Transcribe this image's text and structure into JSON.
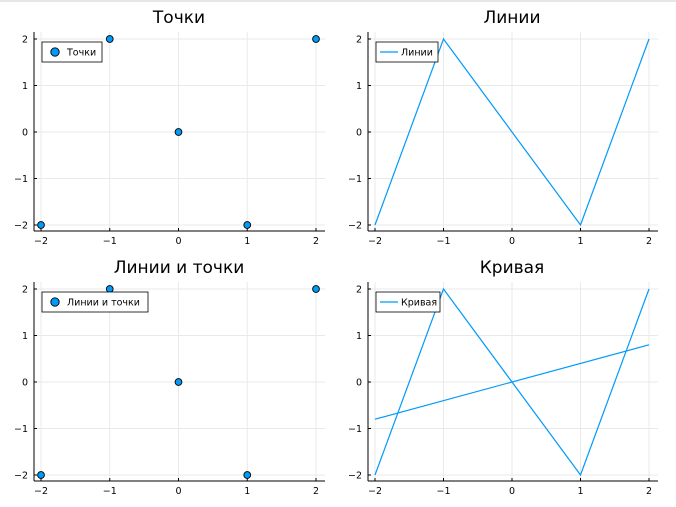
{
  "colors": {
    "series": "#009AFA",
    "marker_stroke": "#000000",
    "grid": "#E9E9E9",
    "axis": "#000000"
  },
  "chart_data": [
    {
      "type": "scatter",
      "title": "Точки",
      "xlabel": "",
      "ylabel": "",
      "xlim": [
        -2,
        2
      ],
      "ylim": [
        -2,
        2
      ],
      "xticks": [
        -2,
        -1,
        0,
        1,
        2
      ],
      "yticks": [
        -2,
        -1,
        0,
        1,
        2
      ],
      "xtick_labels": [
        "−2",
        "−1",
        "0",
        "1",
        "2"
      ],
      "ytick_labels": [
        "−2",
        "−1",
        "0",
        "1",
        "2"
      ],
      "grid": true,
      "legend_position": "top-left",
      "series": [
        {
          "name": "Точки",
          "mode": "markers",
          "x": [
            -2,
            -1,
            0,
            1,
            2
          ],
          "y": [
            -2,
            2,
            0,
            -2,
            2
          ]
        }
      ]
    },
    {
      "type": "line",
      "title": "Линии",
      "xlabel": "",
      "ylabel": "",
      "xlim": [
        -2,
        2
      ],
      "ylim": [
        -2,
        2
      ],
      "xticks": [
        -2,
        -1,
        0,
        1,
        2
      ],
      "yticks": [
        -2,
        -1,
        0,
        1,
        2
      ],
      "xtick_labels": [
        "−2",
        "−1",
        "0",
        "1",
        "2"
      ],
      "ytick_labels": [
        "−2",
        "−1",
        "0",
        "1",
        "2"
      ],
      "grid": true,
      "legend_position": "top-left",
      "series": [
        {
          "name": "Линии",
          "mode": "lines",
          "x": [
            -2,
            -1,
            0,
            1,
            2
          ],
          "y": [
            -2,
            2,
            0,
            -2,
            2
          ]
        }
      ]
    },
    {
      "type": "scatter",
      "title": "Линии и точки",
      "xlabel": "",
      "ylabel": "",
      "xlim": [
        -2,
        2
      ],
      "ylim": [
        -2,
        2
      ],
      "xticks": [
        -2,
        -1,
        0,
        1,
        2
      ],
      "yticks": [
        -2,
        -1,
        0,
        1,
        2
      ],
      "xtick_labels": [
        "−2",
        "−1",
        "0",
        "1",
        "2"
      ],
      "ytick_labels": [
        "−2",
        "−1",
        "0",
        "1",
        "2"
      ],
      "grid": true,
      "legend_position": "top-left",
      "series": [
        {
          "name": "Линии и точки",
          "mode": "markers",
          "x": [
            -2,
            -1,
            0,
            1,
            2
          ],
          "y": [
            -2,
            2,
            0,
            -2,
            2
          ]
        }
      ]
    },
    {
      "type": "line",
      "title": "Кривая",
      "xlabel": "",
      "ylabel": "",
      "xlim": [
        -2,
        2
      ],
      "ylim": [
        -2,
        2
      ],
      "xticks": [
        -2,
        -1,
        0,
        1,
        2
      ],
      "yticks": [
        -2,
        -1,
        0,
        1,
        2
      ],
      "xtick_labels": [
        "−2",
        "−1",
        "0",
        "1",
        "2"
      ],
      "ytick_labels": [
        "−2",
        "−1",
        "0",
        "1",
        "2"
      ],
      "grid": true,
      "legend_position": "top-left",
      "series": [
        {
          "name": "Кривая",
          "mode": "lines",
          "x": [
            -2,
            -1,
            0,
            1,
            2
          ],
          "y": [
            -2,
            2,
            0,
            -2,
            2
          ]
        },
        {
          "mode": "lines",
          "x": [
            -2,
            2
          ],
          "y": [
            -0.8,
            0.8
          ]
        }
      ]
    }
  ]
}
